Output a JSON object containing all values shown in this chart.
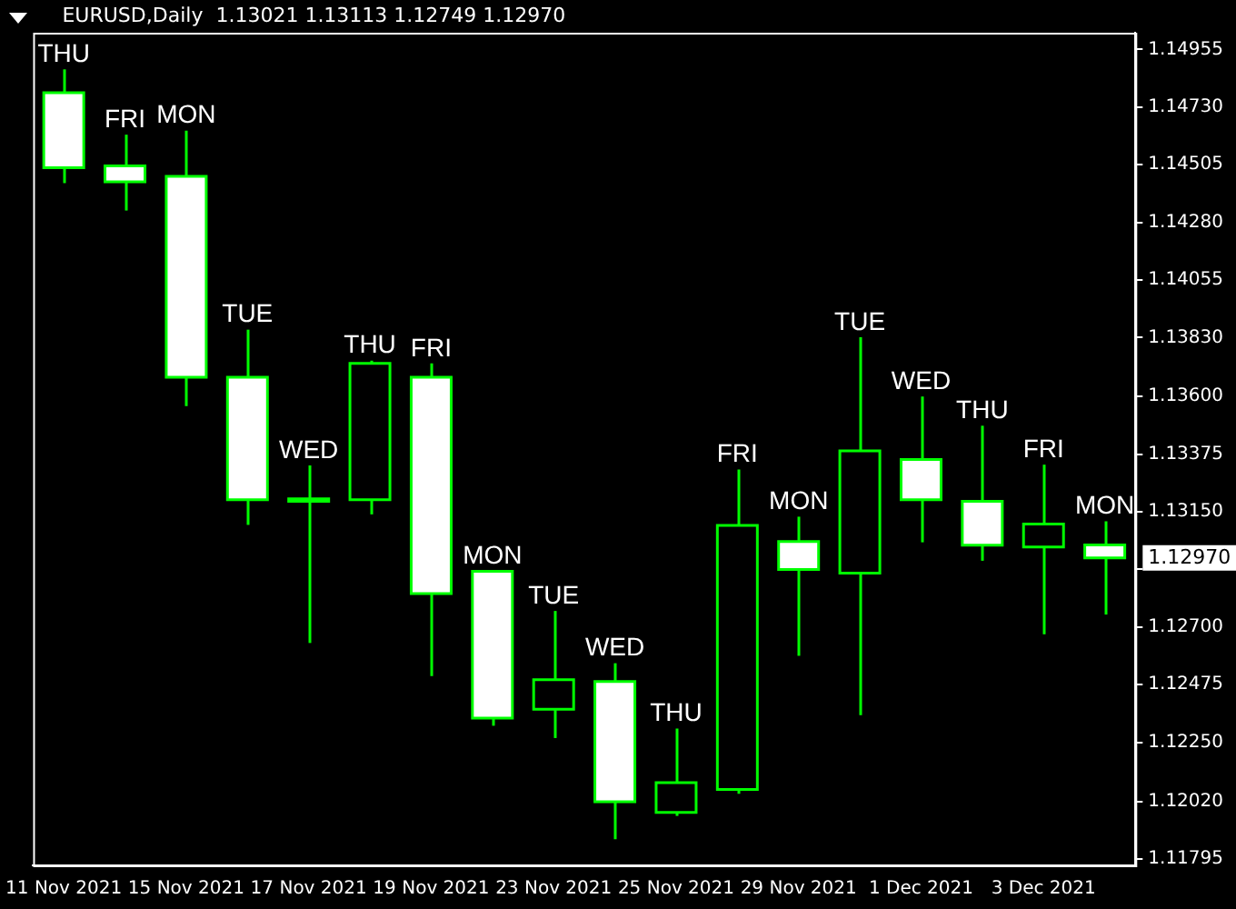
{
  "chart_data": {
    "type": "candlestick",
    "title": "EURUSD,Daily  1.13021 1.13113 1.12749 1.12970",
    "categories": [
      "11 Nov 2021",
      null,
      "15 Nov 2021",
      null,
      "17 Nov 2021",
      null,
      "19 Nov 2021",
      null,
      "23 Nov 2021",
      null,
      "25 Nov 2021",
      null,
      "29 Nov 2021",
      null,
      "1 Dec 2021",
      null,
      "3 Dec 2021",
      null
    ],
    "ohlc": [
      [
        1.14786,
        1.14877,
        1.14433,
        1.14493
      ],
      [
        1.145,
        1.14622,
        1.14326,
        1.14438
      ],
      [
        1.14459,
        1.14638,
        1.13563,
        1.13675
      ],
      [
        1.13675,
        1.13861,
        1.13099,
        1.13197
      ],
      [
        1.13201,
        1.13331,
        1.12638,
        1.13191
      ],
      [
        1.13197,
        1.1374,
        1.1314,
        1.13729
      ],
      [
        1.13675,
        1.13729,
        1.12509,
        1.12831
      ],
      [
        1.12918,
        1.12918,
        1.12315,
        1.12345
      ],
      [
        1.12379,
        1.12763,
        1.12267,
        1.12495
      ],
      [
        1.12488,
        1.12559,
        1.11872,
        1.12018
      ],
      [
        1.11977,
        1.12304,
        1.11963,
        1.12093
      ],
      [
        1.12066,
        1.13315,
        1.12049,
        1.13097
      ],
      [
        1.13034,
        1.13131,
        1.12588,
        1.12925
      ],
      [
        1.12911,
        1.13831,
        1.12356,
        1.13388
      ],
      [
        1.13354,
        1.136,
        1.13031,
        1.13197
      ],
      [
        1.13191,
        1.13486,
        1.12959,
        1.1302
      ],
      [
        1.13013,
        1.13334,
        1.12672,
        1.13102
      ],
      [
        1.13021,
        1.13113,
        1.12749,
        1.1297
      ]
    ],
    "color": "#00ff00",
    "colors": [
      "#ffffff",
      "#ffffff",
      "#ffffff",
      "#ffffff",
      "#ffffff",
      "#000000",
      "#ffffff",
      "#ffffff",
      "#000000",
      "#ffffff",
      "#000000",
      "#000000",
      "#ffffff",
      "#000000",
      "#ffffff",
      "#ffffff",
      "#000000",
      "#ffffff"
    ],
    "value_labels": [
      "THU",
      "FRI",
      "MON",
      "TUE",
      "WED",
      "THU",
      "FRI",
      "MON",
      "TUE",
      "WED",
      "THU",
      "FRI",
      "MON",
      "TUE",
      "WED",
      "THU",
      "FRI",
      "MON"
    ],
    "ylim": [
      1.1177,
      1.1502
    ],
    "yticks": [
      1.14955,
      {
        "value": 1.1473,
        "label": "1.14730"
      },
      1.14505,
      {
        "value": 1.1428,
        "label": "1.14280"
      },
      1.14055,
      {
        "value": 1.1383,
        "label": "1.13830"
      },
      {
        "value": 1.136,
        "label": "1.13600"
      },
      1.13375,
      {
        "value": 1.1315,
        "label": "1.13150"
      },
      {
        "value": 1.12925,
        "label": null
      },
      {
        "value": 1.127,
        "label": "1.12700"
      },
      1.12475,
      {
        "value": 1.1225,
        "label": "1.12250"
      },
      {
        "value": 1.1202,
        "label": "1.12020"
      },
      1.11795
    ],
    "annotations": [
      "1.12970"
    ],
    "grid": false,
    "legend": false
  }
}
